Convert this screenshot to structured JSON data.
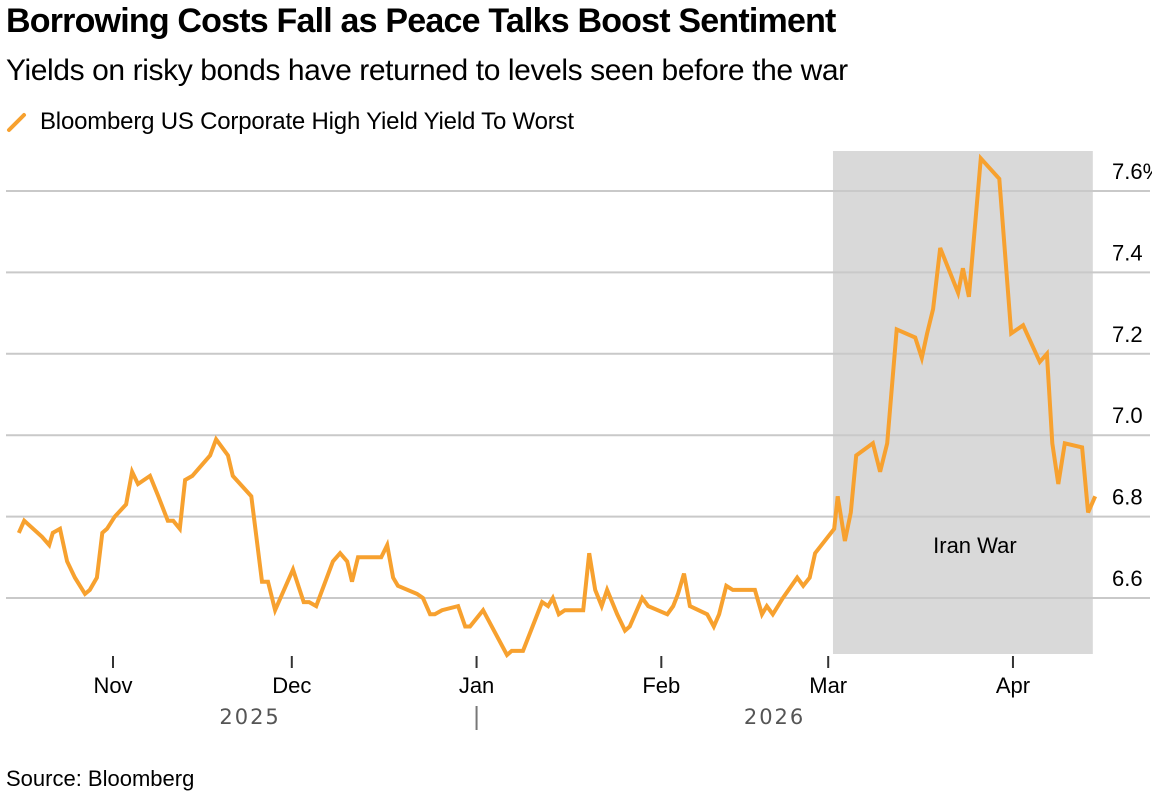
{
  "chart_data": {
    "type": "line",
    "title": "Borrowing Costs Fall as Peace Talks Boost Sentiment",
    "subtitle": "Yields on risky bonds have returned to levels seen before the war",
    "xlabel": "",
    "ylabel": "",
    "x_unit": "days since 2025-11-01",
    "ylim": [
      6.47,
      7.7
    ],
    "y_ticks": [
      6.6,
      6.8,
      7.0,
      7.2,
      7.4,
      7.6
    ],
    "y_tick_labels": [
      "6.6",
      "6.8",
      "7.0",
      "7.2",
      "7.4",
      "7.6%"
    ],
    "grid": true,
    "y_axis_side": "right",
    "legend_position": "top-left",
    "x_ticks": [
      {
        "label": "Nov",
        "day": 0
      },
      {
        "label": "Dec",
        "day": 30
      },
      {
        "label": "Jan",
        "day": 61
      },
      {
        "label": "Feb",
        "day": 92
      },
      {
        "label": "Mar",
        "day": 120
      },
      {
        "label": "Apr",
        "day": 151
      }
    ],
    "year_labels": [
      {
        "label": "2025",
        "day": 23
      },
      {
        "label": "2026",
        "day": 111
      }
    ],
    "year_separator_day": 61,
    "annotations": [
      {
        "label": "Iran War",
        "shade_start_day": 120.8,
        "shade_end_day": 164.4,
        "color": "#d9d9d9"
      }
    ],
    "series": [
      {
        "name": "Bloomberg US Corporate High Yield Yield To Worst",
        "color": "#f7a12f",
        "points": [
          [
            -15.8,
            6.76
          ],
          [
            -14.9,
            6.79
          ],
          [
            -11.9,
            6.75
          ],
          [
            -10.7,
            6.73
          ],
          [
            -10.1,
            6.76
          ],
          [
            -8.9,
            6.77
          ],
          [
            -7.7,
            6.69
          ],
          [
            -6.4,
            6.65
          ],
          [
            -4.7,
            6.61
          ],
          [
            -3.9,
            6.62
          ],
          [
            -2.7,
            6.65
          ],
          [
            -1.8,
            6.76
          ],
          [
            -1.0,
            6.77
          ],
          [
            0.3,
            6.8
          ],
          [
            2.2,
            6.83
          ],
          [
            3.2,
            6.91
          ],
          [
            4.2,
            6.88
          ],
          [
            6.2,
            6.9
          ],
          [
            7.6,
            6.85
          ],
          [
            9.2,
            6.79
          ],
          [
            10.1,
            6.79
          ],
          [
            11.2,
            6.77
          ],
          [
            12.1,
            6.89
          ],
          [
            13.3,
            6.9
          ],
          [
            16.3,
            6.95
          ],
          [
            17.3,
            6.99
          ],
          [
            19.3,
            6.95
          ],
          [
            20.1,
            6.9
          ],
          [
            23.2,
            6.85
          ],
          [
            25.0,
            6.64
          ],
          [
            26.0,
            6.64
          ],
          [
            27.2,
            6.57
          ],
          [
            30.2,
            6.67
          ],
          [
            32.0,
            6.59
          ],
          [
            32.9,
            6.59
          ],
          [
            34.1,
            6.58
          ],
          [
            36.9,
            6.69
          ],
          [
            38.1,
            6.71
          ],
          [
            39.3,
            6.69
          ],
          [
            40.1,
            6.64
          ],
          [
            41.1,
            6.7
          ],
          [
            45.0,
            6.7
          ],
          [
            46.0,
            6.73
          ],
          [
            47.0,
            6.65
          ],
          [
            47.8,
            6.63
          ],
          [
            51.0,
            6.61
          ],
          [
            52.0,
            6.6
          ],
          [
            53.2,
            6.56
          ],
          [
            54.0,
            6.56
          ],
          [
            55.2,
            6.57
          ],
          [
            57.9,
            6.58
          ],
          [
            59.1,
            6.53
          ],
          [
            59.9,
            6.53
          ],
          [
            62.1,
            6.57
          ],
          [
            66.1,
            6.46
          ],
          [
            66.9,
            6.47
          ],
          [
            68.8,
            6.47
          ],
          [
            72.0,
            6.59
          ],
          [
            73.0,
            6.58
          ],
          [
            73.8,
            6.6
          ],
          [
            74.8,
            6.56
          ],
          [
            75.8,
            6.57
          ],
          [
            78.9,
            6.57
          ],
          [
            79.9,
            6.71
          ],
          [
            80.9,
            6.62
          ],
          [
            82.0,
            6.58
          ],
          [
            82.9,
            6.62
          ],
          [
            84.6,
            6.56
          ],
          [
            85.9,
            6.52
          ],
          [
            86.7,
            6.53
          ],
          [
            88.8,
            6.6
          ],
          [
            89.8,
            6.58
          ],
          [
            93.0,
            6.56
          ],
          [
            94.0,
            6.58
          ],
          [
            94.8,
            6.61
          ],
          [
            95.8,
            6.66
          ],
          [
            96.8,
            6.58
          ],
          [
            99.7,
            6.56
          ],
          [
            100.8,
            6.53
          ],
          [
            101.7,
            6.56
          ],
          [
            102.9,
            6.63
          ],
          [
            104.0,
            6.62
          ],
          [
            107.7,
            6.62
          ],
          [
            108.9,
            6.56
          ],
          [
            109.7,
            6.58
          ],
          [
            110.7,
            6.56
          ],
          [
            112.4,
            6.6
          ],
          [
            114.8,
            6.65
          ],
          [
            115.8,
            6.63
          ],
          [
            116.9,
            6.65
          ],
          [
            117.8,
            6.71
          ],
          [
            121.0,
            6.77
          ],
          [
            121.6,
            6.85
          ],
          [
            122.8,
            6.74
          ],
          [
            123.8,
            6.81
          ],
          [
            124.7,
            6.95
          ],
          [
            127.5,
            6.98
          ],
          [
            128.7,
            6.91
          ],
          [
            129.9,
            6.98
          ],
          [
            131.5,
            7.26
          ],
          [
            134.6,
            7.24
          ],
          [
            135.7,
            7.19
          ],
          [
            136.6,
            7.25
          ],
          [
            137.6,
            7.31
          ],
          [
            138.8,
            7.46
          ],
          [
            141.8,
            7.35
          ],
          [
            142.6,
            7.41
          ],
          [
            143.6,
            7.34
          ],
          [
            145.6,
            7.68
          ],
          [
            148.7,
            7.63
          ],
          [
            150.7,
            7.25
          ],
          [
            152.7,
            7.27
          ],
          [
            155.5,
            7.18
          ],
          [
            156.7,
            7.2
          ],
          [
            157.6,
            6.98
          ],
          [
            158.6,
            6.88
          ],
          [
            159.7,
            6.98
          ],
          [
            162.6,
            6.97
          ],
          [
            163.6,
            6.81
          ],
          [
            164.8,
            6.85
          ]
        ]
      }
    ]
  },
  "header": {
    "title": "Borrowing Costs Fall as Peace Talks Boost Sentiment",
    "subtitle": "Yields on risky bonds have returned to levels seen before the war"
  },
  "legend": {
    "label": "Bloomberg US Corporate High Yield Yield To Worst",
    "icon": "diagonal-line-icon",
    "color": "#f7a12f"
  },
  "footer": {
    "source": "Source: Bloomberg"
  }
}
